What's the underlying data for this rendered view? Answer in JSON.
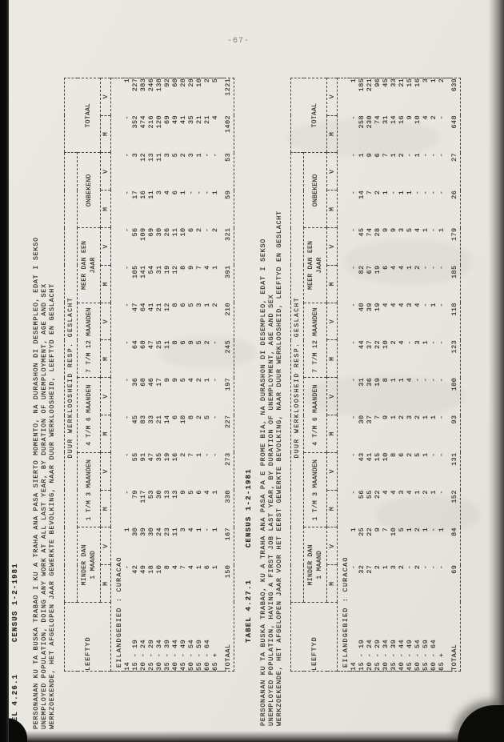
{
  "page": {
    "number": "-67-"
  },
  "tables": [
    {
      "tabel_label": "TABEL 4.26.1",
      "census_label": "CENSUS 1-2-1981",
      "description_lines": [
        "PERSONANAN KU TA BUSKA TRABAO I KU A TRAHA ANA PASA SIERTO MOMENTO, NA DURASHON DI DESEMPLEO, EDAT I SEKSO",
        "UNEMPLOYED POPULATION, DOING ANY WORK AT ALL LAST YEAR, BY DURATION OF UNEMPLOYMENT, AGE AND SEX",
        "WERKZOEKENDE, HET AFGELOPEN JAAR GEWERKTE BEVOLKING, NAAR DUUR WERKLOOSHEID, LEEFTYD EN GESLACHT"
      ],
      "region_caption": "EILANDGEBIED : CURACAO",
      "header": {
        "age_col": "LEEFTYD",
        "group_title": "DUUR WERKLOOSHEID RESP. GESLACHT",
        "groups": [
          "MINDER DAN\n1 MAAND",
          "1 T/M 3 MAANDEN",
          "4 T/M 6 MAANDEN",
          "7 T/M 12 MAANDEN",
          "MEER DAN EEN\nJAAR",
          "ONBEKEND",
          "TOTAAL"
        ],
        "sex_m": "M",
        "sex_v": "V"
      },
      "rows": [
        {
          "age": "14",
          "values": [
            "-",
            "1",
            "-",
            "-",
            "-",
            "-",
            "-",
            "-",
            "-",
            "-",
            "-",
            "-",
            "-",
            "1"
          ]
        },
        {
          "age": "15 - 19",
          "values": [
            "42",
            "30",
            "79",
            "55",
            "45",
            "36",
            "64",
            "47",
            "105",
            "56",
            "17",
            "3",
            "352",
            "227"
          ]
        },
        {
          "age": "20 - 24",
          "values": [
            "49",
            "39",
            "117",
            "91",
            "83",
            "68",
            "68",
            "64",
            "141",
            "109",
            "16",
            "12",
            "474",
            "383"
          ]
        },
        {
          "age": "25 - 29",
          "values": [
            "18",
            "30",
            "53",
            "47",
            "33",
            "46",
            "47",
            "41",
            "54",
            "69",
            "11",
            "13",
            "216",
            "246"
          ]
        },
        {
          "age": "30 - 34",
          "values": [
            "10",
            "24",
            "30",
            "35",
            "21",
            "17",
            "25",
            "21",
            "31",
            "30",
            "3",
            "11",
            "120",
            "138"
          ]
        },
        {
          "age": "35 - 39",
          "values": [
            "8",
            "23",
            "13",
            "19",
            "14",
            "9",
            "11",
            "12",
            "19",
            "26",
            "4",
            "3",
            "69",
            "92"
          ]
        },
        {
          "age": "40 - 44",
          "values": [
            "4",
            "11",
            "13",
            "16",
            "6",
            "9",
            "8",
            "8",
            "12",
            "11",
            "6",
            "5",
            "49",
            "60"
          ]
        },
        {
          "age": "45 - 49",
          "values": [
            "7",
            "3",
            "9",
            "2",
            "10",
            "5",
            "6",
            "6",
            "8",
            "10",
            "1",
            "2",
            "41",
            "28"
          ]
        },
        {
          "age": "50 - 54",
          "values": [
            "4",
            "4",
            "5",
            "7",
            "8",
            "4",
            "9",
            "5",
            "9",
            "6",
            "-",
            "3",
            "35",
            "29"
          ]
        },
        {
          "age": "55 - 59",
          "values": [
            "1",
            "1",
            "6",
            "1",
            "2",
            "2",
            "5",
            "3",
            "7",
            "2",
            "-",
            "1",
            "21",
            "10"
          ]
        },
        {
          "age": "60 - 64",
          "values": [
            "6",
            "-",
            "4",
            "-",
            "5",
            "1",
            "2",
            "1",
            "4",
            "-",
            "-",
            "-",
            "21",
            "2"
          ]
        },
        {
          "age": "65 +",
          "values": [
            "1",
            "1",
            "1",
            "-",
            "-",
            "-",
            "-",
            "2",
            "1",
            "2",
            "1",
            "-",
            "4",
            "5"
          ]
        }
      ],
      "total": {
        "age": "TOTAAL",
        "values": [
          "150",
          "167",
          "330",
          "273",
          "227",
          "197",
          "245",
          "210",
          "391",
          "321",
          "59",
          "53",
          "1402",
          "1221"
        ]
      }
    },
    {
      "tabel_label": "TABEL 4.27.1",
      "census_label": "CENSUS 1-2-1981",
      "description_lines": [
        "PERSONANAN KU TA BUSKA TRABAO, KU A TRAHA ANA PASA PA E PROME BIA, NA DURASHON DI DESEMPLEO, EDAT I SEKSO",
        "UNEMPLOYED POPULATION, HAVING A FIRST JOB LAST YEAR, BY DURATION OF UNEMPLOYMENT, AGE AND SEX",
        "WERKZOEKENDE, HET AFGELOPEN JAAR VOOR HET EERST GEWERKTE BEVOLKING, NAAR DUUR WERKLOOSHEID, LEEFTYD EN GESLACHT"
      ],
      "region_caption": "EILANDGEBIED : CURACAO",
      "header": {
        "age_col": "LEEFTYD",
        "group_title": "DUUR WERKLOOSHEID RESP. GESLACHT",
        "groups": [
          "MINDER DAN\n1 MAAND",
          "1 T/M 3 MAANDEN",
          "4 T/M 6 MAANDEN",
          "7 T/M 12 MAANDEN",
          "MEER DAN EEN\nJAAR",
          "ONBEKEND",
          "TOTAAL"
        ],
        "sex_m": "M",
        "sex_v": "V"
      },
      "rows": [
        {
          "age": "14",
          "values": [
            "-",
            "1",
            "-",
            "-",
            "-",
            "-",
            "-",
            "-",
            "-",
            "-",
            "-",
            "-",
            "-",
            "1"
          ]
        },
        {
          "age": "15 - 19",
          "values": [
            "32",
            "25",
            "56",
            "43",
            "30",
            "31",
            "44",
            "40",
            "82",
            "45",
            "14",
            "1",
            "258",
            "185"
          ]
        },
        {
          "age": "20 - 24",
          "values": [
            "27",
            "22",
            "55",
            "41",
            "37",
            "36",
            "37",
            "39",
            "67",
            "74",
            "7",
            "9",
            "230",
            "221"
          ]
        },
        {
          "age": "25 - 29",
          "values": [
            "2",
            "9",
            "22",
            "15",
            "7",
            "19",
            "22",
            "19",
            "19",
            "28",
            "2",
            "6",
            "74",
            "96"
          ]
        },
        {
          "age": "30 - 34",
          "values": [
            "1",
            "7",
            "4",
            "10",
            "9",
            "8",
            "10",
            "4",
            "6",
            "9",
            "1",
            "7",
            "31",
            "45"
          ]
        },
        {
          "age": "35 - 39",
          "values": [
            "3",
            "10",
            "4",
            "8",
            "1",
            "1",
            "2",
            "4",
            "4",
            "9",
            "-",
            "1",
            "14",
            "33"
          ]
        },
        {
          "age": "40 - 44",
          "values": [
            "2",
            "5",
            "3",
            "6",
            "2",
            "1",
            "4",
            "4",
            "4",
            "3",
            "1",
            "2",
            "16",
            "21"
          ]
        },
        {
          "age": "45 - 49",
          "values": [
            "-",
            "1",
            "4",
            "2",
            "3",
            "4",
            "-",
            "3",
            "1",
            "5",
            "1",
            "-",
            "9",
            "15"
          ]
        },
        {
          "age": "50 - 54",
          "values": [
            "2",
            "2",
            "1",
            "5",
            "2",
            "-",
            "3",
            "4",
            "2",
            "4",
            "-",
            "1",
            "10",
            "16"
          ]
        },
        {
          "age": "55 - 59",
          "values": [
            "-",
            "1",
            "2",
            "1",
            "1",
            "-",
            "1",
            "-",
            "-",
            "1",
            "-",
            "-",
            "4",
            "3"
          ]
        },
        {
          "age": "60 - 64",
          "values": [
            "-",
            "-",
            "1",
            "-",
            "1",
            "-",
            "-",
            "1",
            "-",
            "-",
            "-",
            "-",
            "2",
            "1"
          ]
        },
        {
          "age": "65 +",
          "values": [
            "-",
            "1",
            "-",
            "-",
            "-",
            "-",
            "-",
            "-",
            "-",
            "1",
            "-",
            "-",
            "-",
            "2"
          ]
        }
      ],
      "total": {
        "age": "TOTAAL",
        "values": [
          "69",
          "84",
          "152",
          "131",
          "93",
          "100",
          "123",
          "118",
          "185",
          "179",
          "26",
          "27",
          "648",
          "639"
        ]
      }
    }
  ]
}
